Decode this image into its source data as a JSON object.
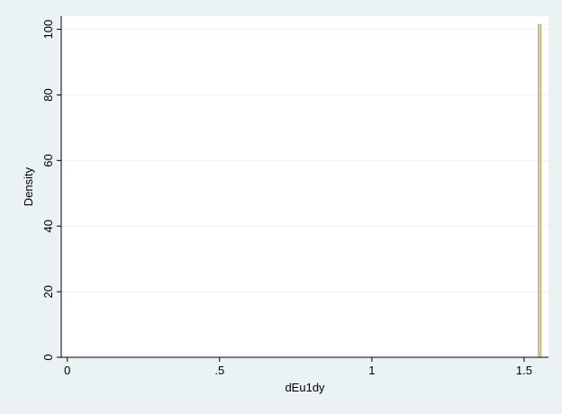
{
  "chart_data": {
    "type": "bar",
    "title": "",
    "xlabel": "dEu1dy",
    "ylabel": "Density",
    "xlim": [
      -0.02,
      1.58
    ],
    "ylim": [
      0,
      104
    ],
    "xticks": [
      0,
      0.5,
      1,
      1.5
    ],
    "xtick_labels": [
      "0",
      ".5",
      "1",
      "1.5"
    ],
    "yticks": [
      0,
      20,
      40,
      60,
      80,
      100
    ],
    "ytick_labels": [
      "0",
      "20",
      "40",
      "60",
      "80",
      "100"
    ],
    "grid": true,
    "bars": [
      {
        "x_start": 1.546,
        "x_end": 1.556,
        "value": 101.5
      }
    ],
    "colors": {
      "bar_fill": "#d8cd9a",
      "bar_edge": "#b8ab70",
      "outer_background": "#eaf2f3",
      "plot_background": "#ffffff",
      "grid": "#eaf2f3"
    }
  }
}
